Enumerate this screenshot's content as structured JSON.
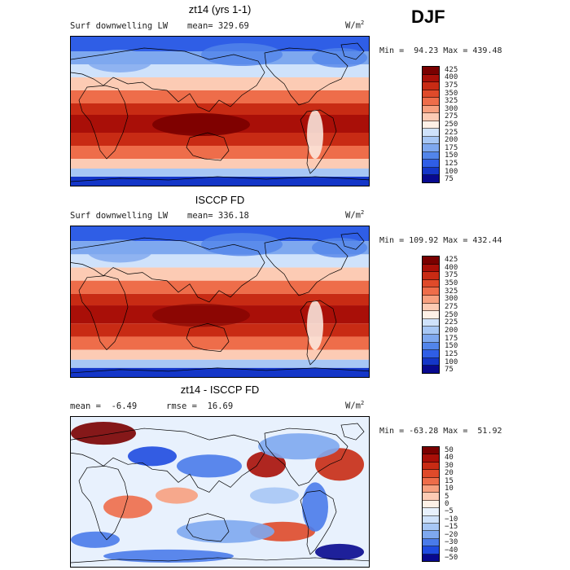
{
  "season": "DJF",
  "panels": [
    {
      "title": "zt14 (yrs 1-1)",
      "left_label": "Surf downwelling LW",
      "mean_label": "mean= 329.69",
      "units_base": "W/m",
      "units_sup": "2",
      "minmax": "Min =  94.23 Max = 439.48",
      "colorbar": [
        "425",
        "400",
        "375",
        "350",
        "325",
        "300",
        "275",
        "250",
        "225",
        "200",
        "175",
        "150",
        "125",
        "100",
        "75"
      ]
    },
    {
      "title": "ISCCP FD",
      "left_label": "Surf downwelling LW",
      "mean_label": "mean= 336.18",
      "units_base": "W/m",
      "units_sup": "2",
      "minmax": "Min = 109.92 Max = 432.44",
      "colorbar": [
        "425",
        "400",
        "375",
        "350",
        "325",
        "300",
        "275",
        "250",
        "225",
        "200",
        "175",
        "150",
        "125",
        "100",
        "75"
      ]
    },
    {
      "title": "zt14 - ISCCP FD",
      "left_label": "mean =  -6.49",
      "mean_label": "rmse =  16.69",
      "units_base": "W/m",
      "units_sup": "2",
      "minmax": "Min = -63.28 Max =  51.92",
      "colorbar": [
        "50",
        "40",
        "30",
        "20",
        "15",
        "10",
        "5",
        "0",
        "−5",
        "−10",
        "−15",
        "−20",
        "−30",
        "−40",
        "−50"
      ]
    }
  ],
  "palettes": {
    "abs": [
      "#7a0000",
      "#a90f08",
      "#c82b14",
      "#df4a2a",
      "#ee6d4a",
      "#f7a07f",
      "#fccbb4",
      "#fdf0e6",
      "#cfe2fb",
      "#a7c7f5",
      "#7ea8ef",
      "#5285ea",
      "#2f5ee6",
      "#1436c8",
      "#08098f"
    ],
    "diff": [
      "#7a0000",
      "#a90f08",
      "#c82b14",
      "#df4a2a",
      "#ee6d4a",
      "#f7a07f",
      "#fccbb4",
      "#fdf0e6",
      "#e8f1fd",
      "#cfe2fb",
      "#a7c7f5",
      "#7ea8ef",
      "#4a7bea",
      "#1f4be0",
      "#08098f"
    ]
  }
}
